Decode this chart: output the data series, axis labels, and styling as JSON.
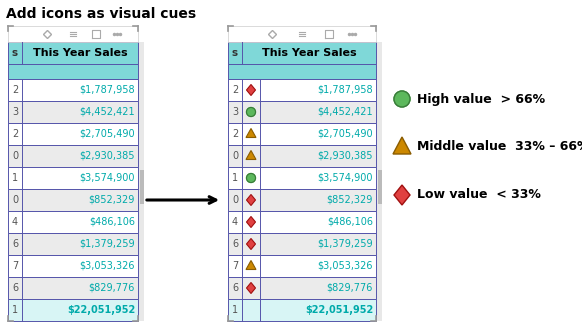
{
  "title": "Add icons as visual cues",
  "title_fontsize": 10,
  "title_fontweight": "bold",
  "header": "This Year Sales",
  "header_bg": "#7FD8D8",
  "row_nums_left": [
    "2",
    "3",
    "2",
    "0",
    "1",
    "0",
    "4",
    "6",
    "7",
    "6",
    "1"
  ],
  "row_nums_right": [
    "2",
    "3",
    "2",
    "0",
    "1",
    "0",
    "4",
    "6",
    "7",
    "6",
    "1"
  ],
  "values": [
    "$1,787,958",
    "$4,452,421",
    "$2,705,490",
    "$2,930,385",
    "$3,574,900",
    "$852,329",
    "$486,106",
    "$1,379,259",
    "$3,053,326",
    "$829,776",
    "$22,051,952"
  ],
  "icons": [
    "low",
    "high",
    "mid",
    "mid",
    "high",
    "low",
    "low",
    "low",
    "mid",
    "low",
    "none"
  ],
  "row_bg_even": "#FFFFFF",
  "row_bg_odd": "#EBEBEB",
  "last_row_bg": "#D8F5F5",
  "table_border_color": "#5555AA",
  "header_extra_bg": "#7FD8D8",
  "icon_high_color": "#5CB85C",
  "icon_high_edge": "#3A7A3A",
  "icon_mid_color": "#CC8800",
  "icon_mid_edge": "#8A5C00",
  "icon_low_color": "#E04040",
  "icon_low_edge": "#A01010",
  "legend_high_label": "High value  > 66%",
  "legend_mid_label": "Middle value  33% – 66%",
  "legend_low_label": "Low value  < 33%",
  "arrow_color": "#000000",
  "value_color": "#00AAAA",
  "value_color_last": "#00AAAA",
  "figure_bg": "#FFFFFF",
  "toolbar_bg": "#FFFFFF",
  "toolbar_border": "#CCCCCC",
  "corner_color": "#999999",
  "num_col_color": "#555555",
  "scrollbar_color": "#BBBBBB"
}
